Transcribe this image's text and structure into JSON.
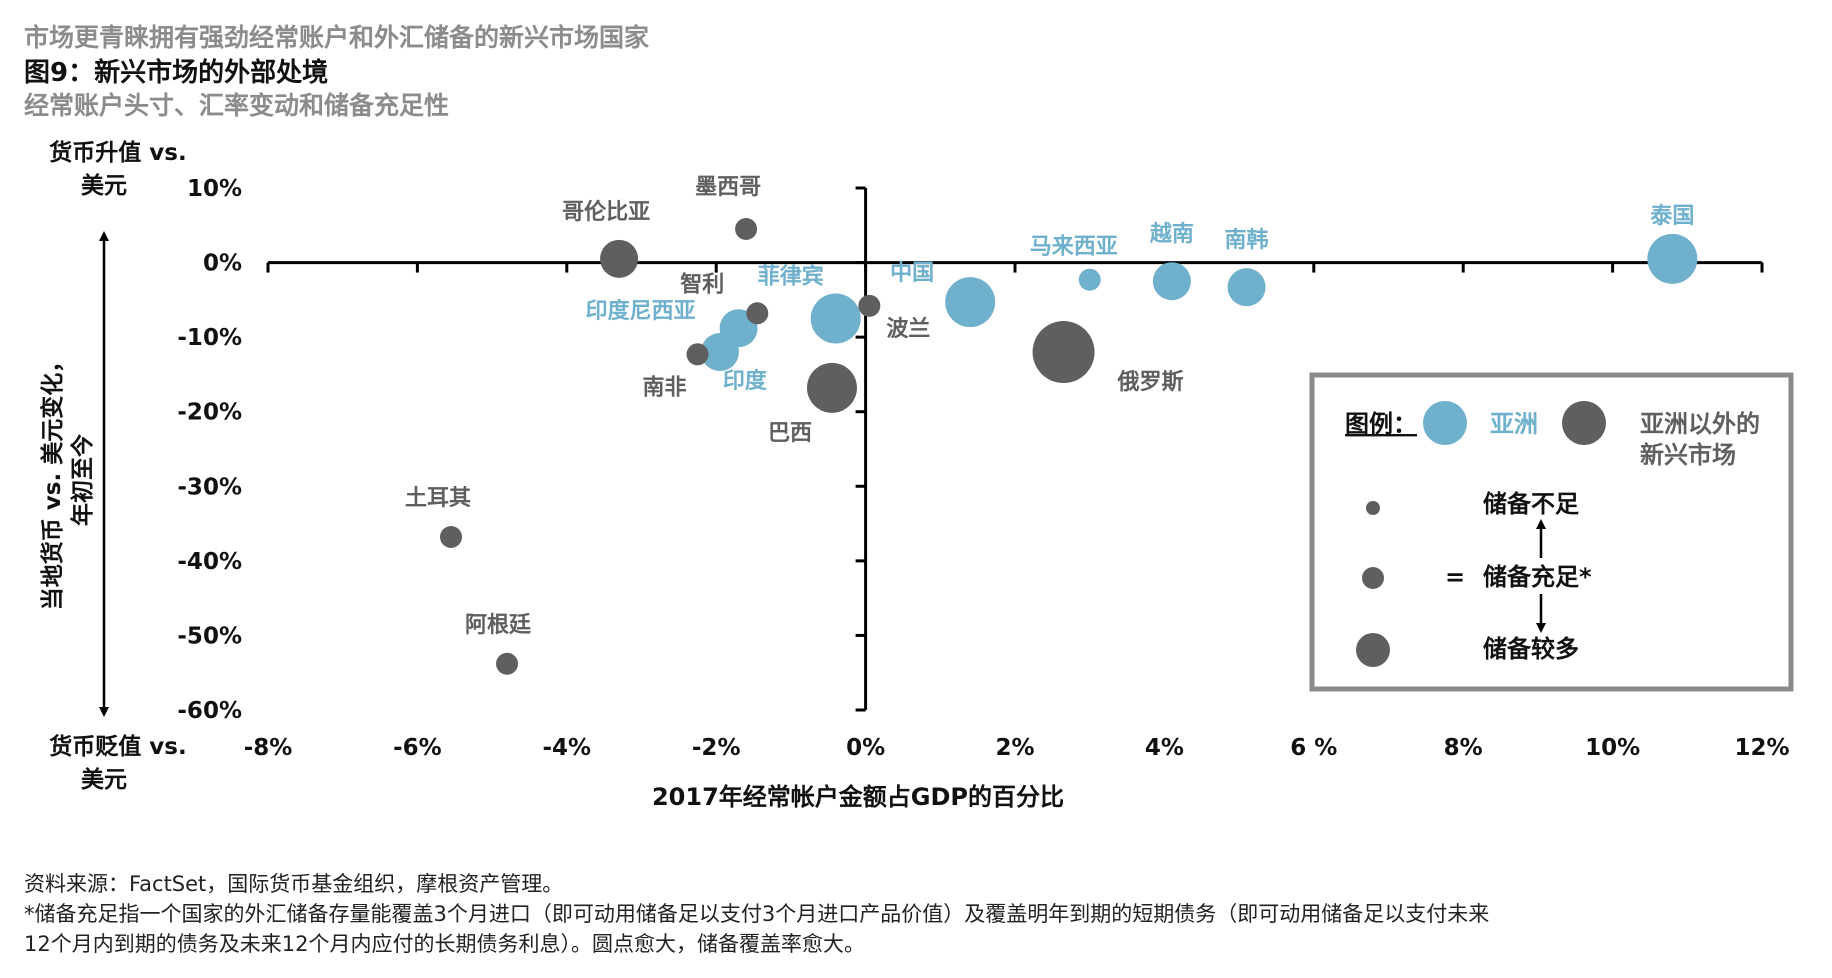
{
  "header": {
    "kicker": "市场更青睐拥有强劲经常账户和外汇储备的新兴市场国家",
    "title": "图9：新兴市场的外部处境",
    "subtitle": "经常账户头寸、汇率变动和储备充足性"
  },
  "footer": {
    "source": "资料来源：FactSet，国际货币基金组织，摩根资产管理。",
    "note_line1": "*储备充足指一个国家的外汇储备存量能覆盖3个月进口（即可动用储备足以支付3个月进口产品价值）及覆盖明年到期的短期债务（即可动用储备足以支付未来",
    "note_line2": "12个月内到期的债务及未来12个月内应付的长期债务利息）。圆点愈大，储备覆盖率愈大。"
  },
  "colors": {
    "asia": "#6fb0cc",
    "non_asia": "#5f5f5f",
    "axis": "#000000",
    "legend_border": "#8a8a8a"
  },
  "chart_data": {
    "type": "scatter",
    "title": "图9：新兴市场的外部处境",
    "xlabel": "2017年经常帐户金额占GDP的百分比",
    "ylabel": "当地货币 vs. 美元变化，年初至今",
    "y_top_label": "货币升值 vs. 美元",
    "y_bottom_label": "货币贬值 vs. 美元",
    "xlim": [
      -8,
      12
    ],
    "ylim": [
      -60,
      10
    ],
    "x_ticks": [
      "-8%",
      "-6%",
      "-4%",
      "-2%",
      "0%",
      "2%",
      "4%",
      "6 %",
      "8%",
      "10%",
      "12%"
    ],
    "y_ticks": [
      "10%",
      "0%",
      "-10%",
      "-20%",
      "-30%",
      "-40%",
      "-50%",
      "-60%"
    ],
    "reserve_levels": [
      "储备不足",
      "储备充足*",
      "储备较多"
    ],
    "points": [
      {
        "name": "泰国",
        "x": 10.8,
        "y": 0.5,
        "group": "asia",
        "size": 3
      },
      {
        "name": "马来西亚",
        "x": 3.0,
        "y": -2.3,
        "group": "asia",
        "size": 1
      },
      {
        "name": "越南",
        "x": 4.1,
        "y": -2.5,
        "group": "asia",
        "size": 2
      },
      {
        "name": "南韩",
        "x": 5.1,
        "y": -3.3,
        "group": "asia",
        "size": 2
      },
      {
        "name": "中国",
        "x": 1.4,
        "y": -5.3,
        "group": "asia",
        "size": 3
      },
      {
        "name": "菲律宾",
        "x": -0.4,
        "y": -7.5,
        "group": "asia",
        "size": 3
      },
      {
        "name": "印度尼西亚",
        "x": -1.7,
        "y": -8.8,
        "group": "asia",
        "size": 2
      },
      {
        "name": "印度",
        "x": -1.95,
        "y": -12.0,
        "group": "asia",
        "size": 2
      },
      {
        "name": "墨西哥",
        "x": -1.6,
        "y": 4.5,
        "group": "non_asia",
        "size": 1
      },
      {
        "name": "哥伦比亚",
        "x": -3.3,
        "y": 0.5,
        "group": "non_asia",
        "size": 2
      },
      {
        "name": "智利",
        "x": -1.45,
        "y": -6.8,
        "group": "non_asia",
        "size": 1
      },
      {
        "name": "波兰",
        "x": 0.05,
        "y": -5.8,
        "group": "non_asia",
        "size": 1
      },
      {
        "name": "南非",
        "x": -2.25,
        "y": -12.3,
        "group": "non_asia",
        "size": 1
      },
      {
        "name": "巴西",
        "x": -0.45,
        "y": -16.8,
        "group": "non_asia",
        "size": 3
      },
      {
        "name": "俄罗斯",
        "x": 2.65,
        "y": -12.0,
        "group": "non_asia",
        "size": 4
      },
      {
        "name": "土耳其",
        "x": -5.55,
        "y": -36.8,
        "group": "non_asia",
        "size": 1
      },
      {
        "name": "阿根廷",
        "x": -4.8,
        "y": -53.8,
        "group": "non_asia",
        "size": 1
      }
    ],
    "legend": {
      "title": "图例：",
      "asia_label": "亚洲",
      "non_asia_label_line1": "亚洲以外的",
      "non_asia_label_line2": "新兴市场",
      "equals": "="
    }
  }
}
